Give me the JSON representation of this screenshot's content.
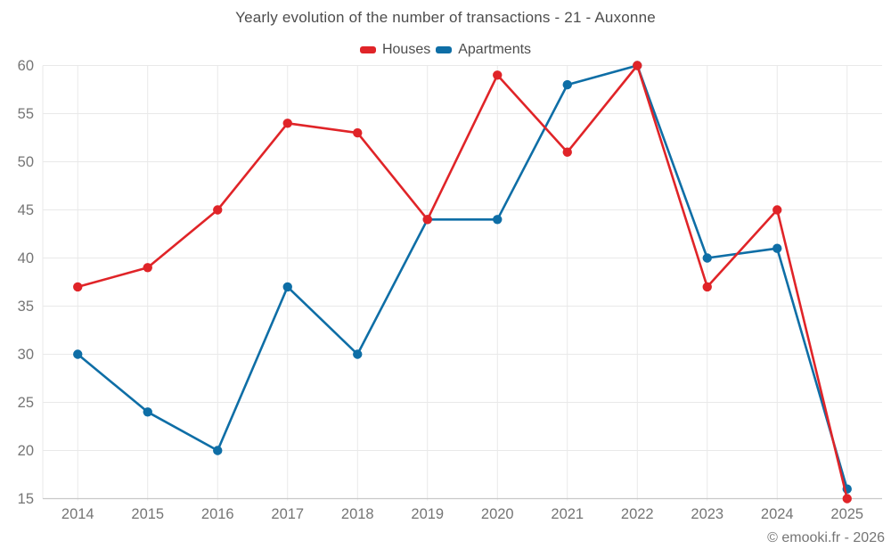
{
  "chart_data": {
    "type": "line",
    "title": "Yearly evolution of the number of transactions - 21 - Auxonne",
    "x": [
      "2014",
      "2015",
      "2016",
      "2017",
      "2018",
      "2019",
      "2020",
      "2021",
      "2022",
      "2023",
      "2024",
      "2025"
    ],
    "series": [
      {
        "name": "Houses",
        "color": "#e02428",
        "values": [
          37,
          39,
          45,
          54,
          53,
          44,
          59,
          51,
          60,
          37,
          45,
          15
        ]
      },
      {
        "name": "Apartments",
        "color": "#0e6ea6",
        "values": [
          30,
          24,
          20,
          37,
          30,
          44,
          44,
          58,
          60,
          40,
          41,
          16
        ]
      }
    ],
    "ylim": [
      15,
      60
    ],
    "yticks": [
      15,
      20,
      25,
      30,
      35,
      40,
      45,
      50,
      55,
      60
    ],
    "xlabel": "",
    "ylabel": "",
    "grid": true,
    "legend_position": "top-center",
    "marker": "circle"
  },
  "footer": {
    "copyright": "© emooki.fr - 2026"
  },
  "style_colors": {
    "grid": "#e9e9e9",
    "axis": "#c9c9c9",
    "tick_text": "#757575",
    "title_text": "#4d4d4d"
  }
}
